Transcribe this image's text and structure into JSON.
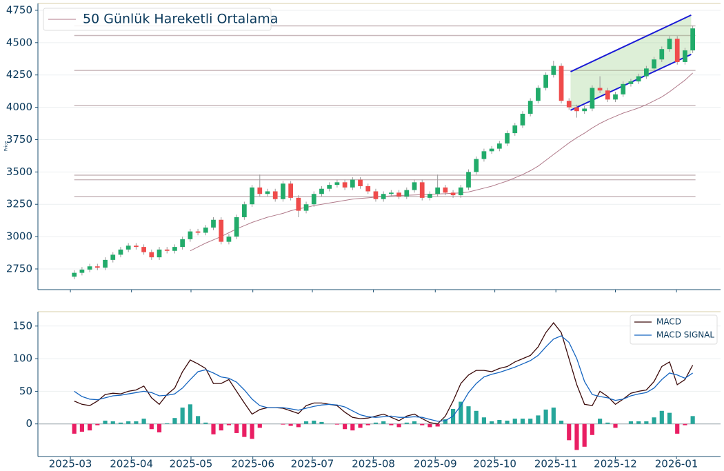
{
  "chart_data": [
    {
      "type": "candlestick",
      "ylabel": "Price",
      "xlim": [
        -4.7,
        83.6
      ],
      "ylim": [
        2590,
        4803
      ],
      "yticks": [
        2750,
        3000,
        3250,
        3500,
        3750,
        4000,
        4250,
        4500,
        4750
      ],
      "grid": true,
      "up_color": "#22ab6a",
      "down_color": "#ef4b4b",
      "open": [
        2690,
        2720,
        2745,
        2770,
        2760,
        2820,
        2860,
        2900,
        2930,
        2920,
        2880,
        2840,
        2900,
        2890,
        2920,
        2980,
        3040,
        3030,
        3070,
        3130,
        2960,
        3000,
        3150,
        3250,
        3380,
        3330,
        3350,
        3290,
        3410,
        3300,
        3200,
        3250,
        3330,
        3370,
        3400,
        3420,
        3380,
        3440,
        3390,
        3350,
        3290,
        3330,
        3340,
        3310,
        3360,
        3420,
        3300,
        3330,
        3380,
        3340,
        3320,
        3380,
        3500,
        3600,
        3660,
        3680,
        3720,
        3800,
        3860,
        3950,
        4050,
        4150,
        4250,
        4320,
        4050,
        4000,
        3970,
        3990,
        4150,
        4130,
        4060,
        4100,
        4180,
        4200,
        4240,
        4300,
        4370,
        4450,
        4530,
        4350,
        4440
      ],
      "high": [
        2740,
        2765,
        2790,
        2790,
        2840,
        2880,
        2920,
        2950,
        2950,
        2940,
        2900,
        2920,
        2920,
        2940,
        3000,
        3060,
        3060,
        3090,
        3150,
        3150,
        3020,
        3170,
        3270,
        3400,
        3480,
        3370,
        3370,
        3430,
        3430,
        3320,
        3270,
        3350,
        3390,
        3420,
        3440,
        3440,
        3460,
        3460,
        3410,
        3370,
        3350,
        3360,
        3360,
        3380,
        3440,
        3440,
        3350,
        3480,
        3400,
        3360,
        3400,
        3520,
        3620,
        3680,
        3700,
        3740,
        3820,
        3880,
        3970,
        4070,
        4170,
        4270,
        4360,
        4340,
        4070,
        4020,
        4010,
        4170,
        4240,
        4150,
        4120,
        4200,
        4220,
        4260,
        4320,
        4390,
        4470,
        4550,
        4550,
        4460,
        4630
      ],
      "low": [
        2670,
        2700,
        2725,
        2740,
        2740,
        2800,
        2840,
        2880,
        2900,
        2860,
        2820,
        2820,
        2870,
        2870,
        2900,
        2960,
        3010,
        3010,
        3050,
        2940,
        2940,
        2980,
        3130,
        3230,
        3310,
        3310,
        3270,
        3270,
        3280,
        3150,
        3180,
        3230,
        3310,
        3350,
        3380,
        3360,
        3360,
        3370,
        3330,
        3270,
        3270,
        3310,
        3290,
        3290,
        3340,
        3280,
        3280,
        3310,
        3320,
        3300,
        3300,
        3360,
        3480,
        3580,
        3640,
        3660,
        3700,
        3780,
        3840,
        3930,
        4030,
        4130,
        4230,
        4030,
        3980,
        3920,
        3950,
        3970,
        4110,
        4040,
        4040,
        4080,
        4160,
        4180,
        4220,
        4280,
        4350,
        4430,
        4330,
        4330,
        4420
      ],
      "close": [
        2720,
        2745,
        2770,
        2760,
        2820,
        2860,
        2900,
        2930,
        2920,
        2880,
        2840,
        2900,
        2890,
        2920,
        2980,
        3040,
        3030,
        3070,
        3130,
        2960,
        3000,
        3150,
        3250,
        3380,
        3330,
        3350,
        3290,
        3410,
        3300,
        3200,
        3250,
        3330,
        3370,
        3400,
        3420,
        3380,
        3440,
        3390,
        3350,
        3290,
        3330,
        3340,
        3310,
        3360,
        3420,
        3300,
        3330,
        3380,
        3340,
        3320,
        3380,
        3500,
        3600,
        3660,
        3680,
        3720,
        3800,
        3860,
        3950,
        4050,
        4150,
        4250,
        4320,
        4050,
        4000,
        3970,
        3990,
        4150,
        4130,
        4060,
        4100,
        4180,
        4200,
        4240,
        4300,
        4370,
        4450,
        4530,
        4350,
        4440,
        4610
      ],
      "series": [
        {
          "name": "50 Günlük Hareketli Ortalama",
          "color": "#b07a8a",
          "values": [
            null,
            null,
            null,
            null,
            null,
            null,
            null,
            null,
            null,
            null,
            null,
            null,
            null,
            null,
            null,
            2890,
            2920,
            2950,
            2975,
            3000,
            3030,
            3060,
            3085,
            3110,
            3130,
            3150,
            3165,
            3180,
            3200,
            3215,
            3225,
            3240,
            3250,
            3260,
            3270,
            3280,
            3290,
            3295,
            3300,
            3305,
            3310,
            3315,
            3318,
            3320,
            3322,
            3325,
            3328,
            3330,
            3332,
            3335,
            3338,
            3345,
            3360,
            3375,
            3390,
            3410,
            3430,
            3455,
            3480,
            3510,
            3545,
            3590,
            3635,
            3680,
            3725,
            3765,
            3800,
            3840,
            3875,
            3905,
            3930,
            3955,
            3975,
            3995,
            4020,
            4050,
            4080,
            4120,
            4165,
            4210,
            4265
          ]
        }
      ],
      "hlines": [
        4630,
        4555,
        4285,
        4015,
        3475,
        3440,
        3310
      ],
      "hline_color": "#c9b8bc",
      "channel": {
        "x": [
          64.2,
          79.8
        ],
        "upper": [
          4275,
          4713
        ],
        "lower": [
          3977,
          4409
        ],
        "color": "#1a1ad6",
        "fill": "#8fc97a"
      }
    },
    {
      "type": "macd",
      "xlim": [
        -4.7,
        83.6
      ],
      "ylim": [
        -50,
        172
      ],
      "yticks": [
        0,
        50,
        100,
        150
      ],
      "grid": true,
      "xticks": [
        {
          "value": -0.5,
          "label": "2025-03"
        },
        {
          "value": 7.4,
          "label": "2025-04"
        },
        {
          "value": 15.1,
          "label": "2025-05"
        },
        {
          "value": 23.1,
          "label": "2025-06"
        },
        {
          "value": 30.8,
          "label": "2025-07"
        },
        {
          "value": 38.7,
          "label": "2025-08"
        },
        {
          "value": 46.7,
          "label": "2025-09"
        },
        {
          "value": 54.4,
          "label": "2025-10"
        },
        {
          "value": 62.3,
          "label": "2025-11"
        },
        {
          "value": 70.0,
          "label": "2025-12"
        },
        {
          "value": 77.9,
          "label": "2026-01"
        }
      ],
      "series": [
        {
          "name": "MACD",
          "color": "#3b0a0a",
          "values": [
            35,
            30,
            28,
            35,
            45,
            47,
            46,
            50,
            52,
            58,
            40,
            30,
            45,
            55,
            80,
            98,
            92,
            85,
            62,
            62,
            68,
            50,
            32,
            15,
            22,
            25,
            25,
            24,
            20,
            16,
            28,
            32,
            32,
            30,
            28,
            18,
            10,
            8,
            9,
            12,
            15,
            10,
            5,
            12,
            15,
            8,
            2,
            0,
            12,
            35,
            62,
            75,
            82,
            82,
            80,
            85,
            88,
            95,
            100,
            105,
            118,
            140,
            155,
            140,
            100,
            60,
            30,
            28,
            50,
            42,
            30,
            38,
            47,
            50,
            52,
            65,
            88,
            95,
            60,
            68,
            90
          ]
        },
        {
          "name": "MACD SIGNAL",
          "color": "#1565c0",
          "values": [
            50,
            42,
            38,
            37,
            40,
            43,
            44,
            46,
            48,
            50,
            48,
            43,
            44,
            46,
            55,
            68,
            80,
            83,
            78,
            72,
            70,
            64,
            52,
            38,
            28,
            25,
            25,
            25,
            23,
            21,
            24,
            27,
            29,
            30,
            29,
            26,
            20,
            14,
            11,
            10,
            11,
            12,
            10,
            10,
            11,
            10,
            7,
            4,
            5,
            12,
            28,
            48,
            62,
            72,
            76,
            79,
            83,
            87,
            92,
            97,
            105,
            118,
            130,
            135,
            125,
            100,
            65,
            45,
            42,
            40,
            36,
            38,
            43,
            46,
            48,
            55,
            68,
            78,
            75,
            70,
            78
          ]
        }
      ],
      "histogram": {
        "pos_color": "#26a69a",
        "neg_color": "#e91e63",
        "values": [
          -15,
          -12,
          -10,
          -2,
          5,
          4,
          2,
          4,
          4,
          8,
          -8,
          -13,
          1,
          9,
          25,
          30,
          12,
          2,
          -16,
          -10,
          -2,
          -14,
          -20,
          -23,
          -6,
          0,
          0,
          -1,
          -3,
          -5,
          4,
          5,
          3,
          0,
          -1,
          -8,
          -10,
          -6,
          -2,
          2,
          4,
          -2,
          -5,
          2,
          4,
          -2,
          -5,
          -4,
          7,
          23,
          34,
          27,
          20,
          10,
          4,
          6,
          5,
          8,
          8,
          8,
          13,
          22,
          25,
          5,
          -25,
          -40,
          -35,
          -17,
          8,
          2,
          -6,
          0,
          4,
          4,
          4,
          10,
          20,
          17,
          -15,
          -2,
          12
        ]
      }
    }
  ]
}
